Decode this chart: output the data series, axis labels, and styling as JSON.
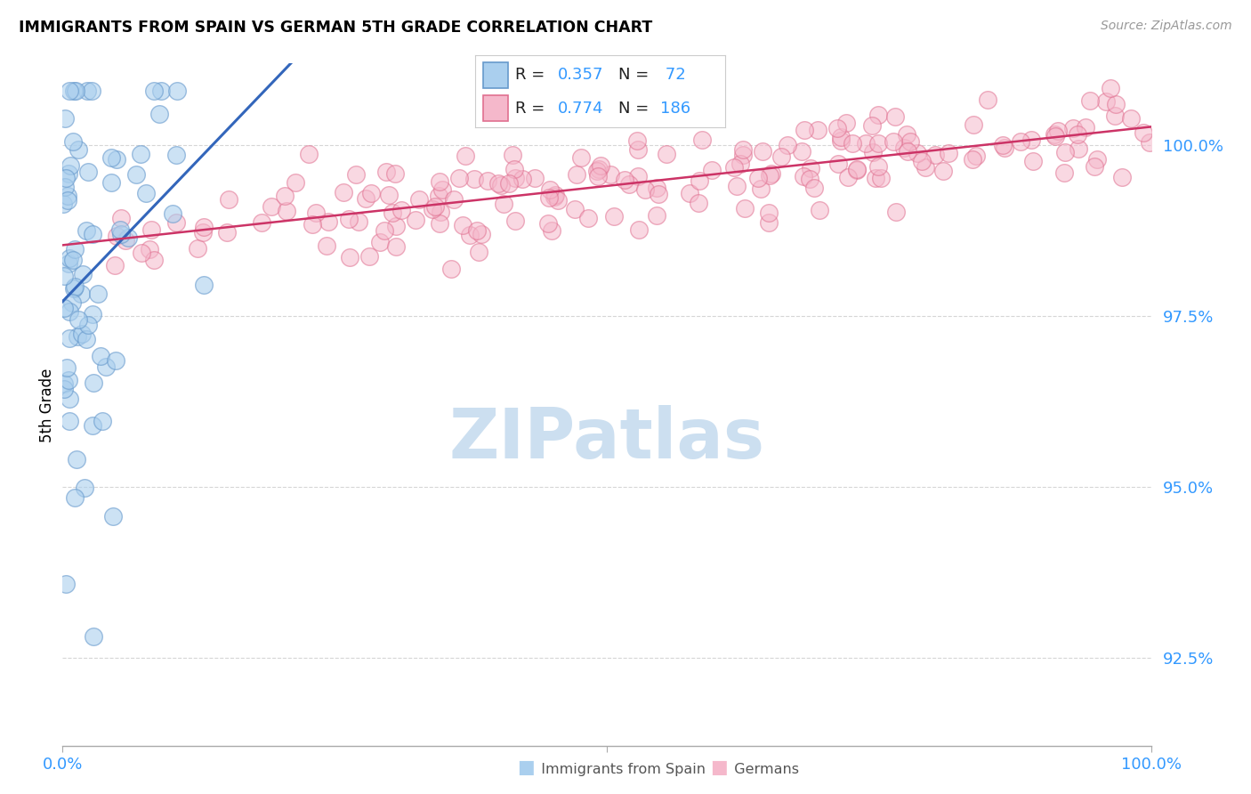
{
  "title": "IMMIGRANTS FROM SPAIN VS GERMAN 5TH GRADE CORRELATION CHART",
  "source": "Source: ZipAtlas.com",
  "ylabel": "5th Grade",
  "ytick_values": [
    92.5,
    95.0,
    97.5,
    100.0
  ],
  "xmin": 0.0,
  "xmax": 100.0,
  "ymin": 91.2,
  "ymax": 101.2,
  "watermark_text": "ZIPatlas",
  "watermark_color": "#ccdff0",
  "background_color": "#ffffff",
  "grid_color": "#cccccc",
  "spain_dot_facecolor": "#aacfee",
  "spain_dot_edgecolor": "#6699cc",
  "spain_line_color": "#3366bb",
  "german_dot_facecolor": "#f5b8cb",
  "german_dot_edgecolor": "#e07090",
  "german_line_color": "#cc3366",
  "axis_color": "#aaaaaa",
  "tick_label_color": "#3399ff",
  "legend_R_N_color": "#3399ff",
  "legend_text_color": "#222222",
  "bottom_legend_text_color": "#555555",
  "spain_N": 72,
  "german_N": 186,
  "spain_R_label": "0.357",
  "german_R_label": "0.774",
  "spain_N_label": "72",
  "german_N_label": "186"
}
